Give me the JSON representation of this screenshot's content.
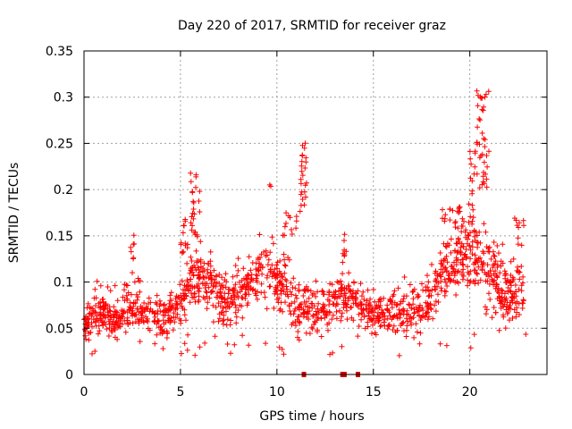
{
  "chart_data": {
    "type": "scatter",
    "title": "Day 220 of 2017, SRMTID for receiver graz",
    "xlabel": "GPS time / hours",
    "ylabel": "SRMTID / TECUs",
    "xlim": [
      0,
      24
    ],
    "ylim": [
      0,
      0.35
    ],
    "xticks": [
      0,
      5,
      10,
      15,
      20
    ],
    "xtick_labels": [
      "0",
      "5",
      "10",
      "15",
      "20"
    ],
    "yticks": [
      0,
      0.05,
      0.1,
      0.15,
      0.2,
      0.25,
      0.3,
      0.35
    ],
    "ytick_labels": [
      "0",
      "0.05",
      "0.1",
      "0.15",
      "0.2",
      "0.25",
      "0.3",
      "0.35"
    ],
    "grid": true,
    "marker": "+",
    "marker_color": "#ff0000",
    "point_count": 1500,
    "trend": {
      "x": [
        0,
        0.5,
        1,
        1.5,
        2,
        2.5,
        3,
        3.5,
        4,
        4.5,
        5,
        5.5,
        6,
        6.5,
        7,
        7.5,
        8,
        8.5,
        9,
        9.5,
        10,
        10.5,
        11,
        11.5,
        12,
        12.5,
        13,
        13.5,
        14,
        14.5,
        15,
        15.5,
        16,
        16.5,
        17,
        17.5,
        18,
        18.5,
        19,
        19.5,
        20,
        20.5,
        21,
        21.5,
        22,
        22.5,
        22.8
      ],
      "y": [
        0.055,
        0.06,
        0.065,
        0.06,
        0.058,
        0.075,
        0.065,
        0.06,
        0.058,
        0.065,
        0.075,
        0.1,
        0.11,
        0.095,
        0.085,
        0.08,
        0.085,
        0.1,
        0.11,
        0.115,
        0.1,
        0.095,
        0.07,
        0.075,
        0.068,
        0.072,
        0.078,
        0.085,
        0.085,
        0.07,
        0.065,
        0.065,
        0.068,
        0.07,
        0.072,
        0.075,
        0.085,
        0.11,
        0.12,
        0.13,
        0.135,
        0.13,
        0.11,
        0.1,
        0.085,
        0.085,
        0.095
      ]
    },
    "spread": {
      "x": [
        0,
        5,
        8,
        10,
        11.5,
        13,
        15,
        18,
        20,
        21,
        22.8
      ],
      "y": [
        0.012,
        0.016,
        0.022,
        0.024,
        0.02,
        0.018,
        0.016,
        0.02,
        0.03,
        0.032,
        0.022
      ]
    },
    "bursts": [
      {
        "x_range": [
          0.5,
          3.0
        ],
        "y_range": [
          0.08,
          0.105
        ],
        "count": 20
      },
      {
        "x_range": [
          2.4,
          2.6
        ],
        "y_range": [
          0.11,
          0.155
        ],
        "count": 8
      },
      {
        "x_range": [
          5.0,
          5.5
        ],
        "y_range": [
          0.13,
          0.175
        ],
        "count": 14
      },
      {
        "x_range": [
          5.5,
          6.05
        ],
        "y_range": [
          0.14,
          0.22
        ],
        "count": 26
      },
      {
        "x_range": [
          9.6,
          9.7
        ],
        "y_range": [
          0.2,
          0.21
        ],
        "count": 2
      },
      {
        "x_range": [
          10.3,
          11.2
        ],
        "y_range": [
          0.15,
          0.175
        ],
        "count": 12
      },
      {
        "x_range": [
          11.2,
          11.55
        ],
        "y_range": [
          0.17,
          0.265
        ],
        "count": 24
      },
      {
        "x_range": [
          13.4,
          13.7
        ],
        "y_range": [
          0.12,
          0.155
        ],
        "count": 8
      },
      {
        "x_range": [
          18.5,
          20.0
        ],
        "y_range": [
          0.15,
          0.185
        ],
        "count": 22
      },
      {
        "x_range": [
          20.0,
          20.3
        ],
        "y_range": [
          0.16,
          0.245
        ],
        "count": 14
      },
      {
        "x_range": [
          20.35,
          21.0
        ],
        "y_range": [
          0.2,
          0.31
        ],
        "count": 40
      },
      {
        "x_range": [
          22.3,
          22.8
        ],
        "y_range": [
          0.13,
          0.17
        ],
        "count": 10
      },
      {
        "x_range": [
          0,
          24
        ],
        "y_range": [
          0.02,
          0.045
        ],
        "count": 40
      }
    ],
    "data_gaps_hours": [
      11.4,
      13.4,
      13.5,
      14.2
    ]
  }
}
